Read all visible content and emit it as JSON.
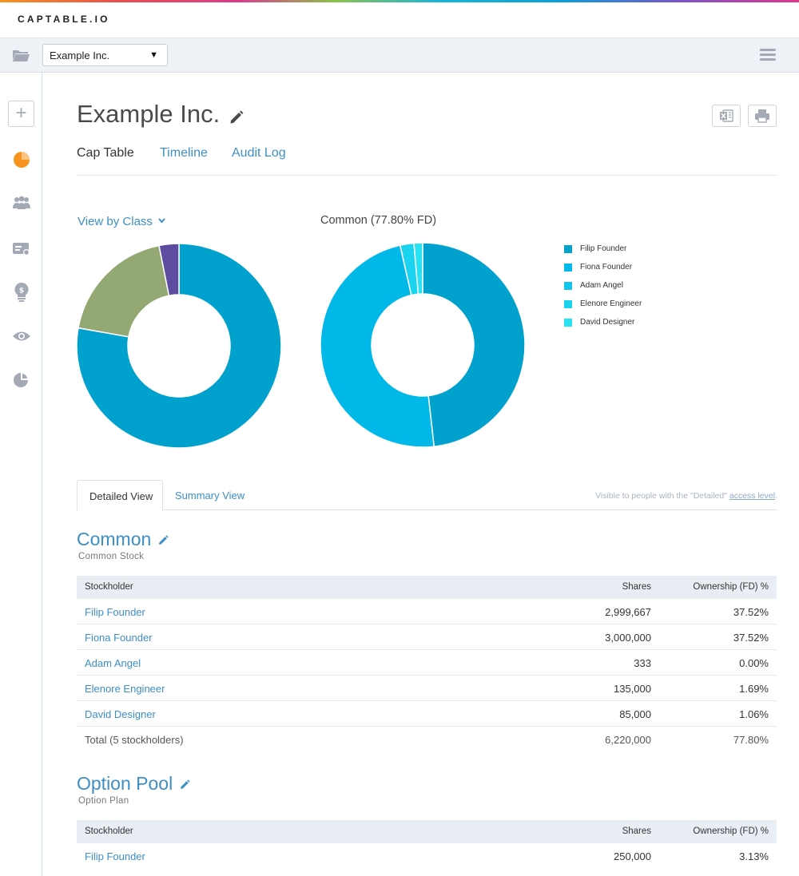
{
  "brand": "CAPTABLE.IO",
  "toolbar": {
    "company_select": "Example Inc."
  },
  "sidebar": {
    "items": [
      "add-icon",
      "pie-chart-icon",
      "people-icon",
      "id-card-icon",
      "lightbulb-icon",
      "eye-icon",
      "pie-edit-icon"
    ]
  },
  "header": {
    "title": "Example Inc.",
    "tabs": [
      "Cap Table",
      "Timeline",
      "Audit Log"
    ]
  },
  "charts": {
    "view_by": "View by Class",
    "second_title": "Common (77.80% FD)"
  },
  "chart_data": [
    {
      "type": "pie",
      "labels": [
        "",
        "",
        ""
      ],
      "values": [
        77.8,
        19.07,
        3.13
      ],
      "colors": [
        "#00a1cd",
        "#93a873",
        "#5d4ca0"
      ]
    },
    {
      "type": "pie",
      "title": "Common (77.80% FD)",
      "labels": [
        "Filip Founder",
        "Fiona Founder",
        "Adam Angel",
        "Elenore Engineer",
        "David Designer"
      ],
      "values": [
        2999667,
        3000000,
        333,
        135000,
        85000
      ],
      "colors": [
        "#00a1cd",
        "#00b9e8",
        "#11c6ea",
        "#1ad3ee",
        "#28e2f4"
      ]
    }
  ],
  "view_tabs": {
    "detailed": "Detailed View",
    "summary": "Summary View",
    "note_prefix": "Visible to people with the \"Detailed\"",
    "note_link": "access level",
    "note_suffix": "."
  },
  "columns": {
    "stockholder": "Stockholder",
    "shares": "Shares",
    "ownership": "Ownership (FD) %"
  },
  "classes": [
    {
      "title": "Common",
      "subtitle": "Common Stock",
      "rows": [
        {
          "name": "Filip Founder",
          "shares": "2,999,667",
          "pct": "37.52%"
        },
        {
          "name": "Fiona Founder",
          "shares": "3,000,000",
          "pct": "37.52%"
        },
        {
          "name": "Adam Angel",
          "shares": "333",
          "pct": "0.00%"
        },
        {
          "name": "Elenore Engineer",
          "shares": "135,000",
          "pct": "1.69%"
        },
        {
          "name": "David Designer",
          "shares": "85,000",
          "pct": "1.06%"
        }
      ],
      "total": {
        "name": "Total (5 stockholders)",
        "shares": "6,220,000",
        "pct": "77.80%"
      }
    },
    {
      "title": "Option Pool",
      "subtitle": "Option Plan",
      "rows": [
        {
          "name": "Filip Founder",
          "shares": "250,000",
          "pct": "3.13%"
        }
      ]
    }
  ],
  "colors": {
    "accent": "#3d8fc6",
    "orange": "#f7941d",
    "icon_grey": "#a3aab5"
  }
}
